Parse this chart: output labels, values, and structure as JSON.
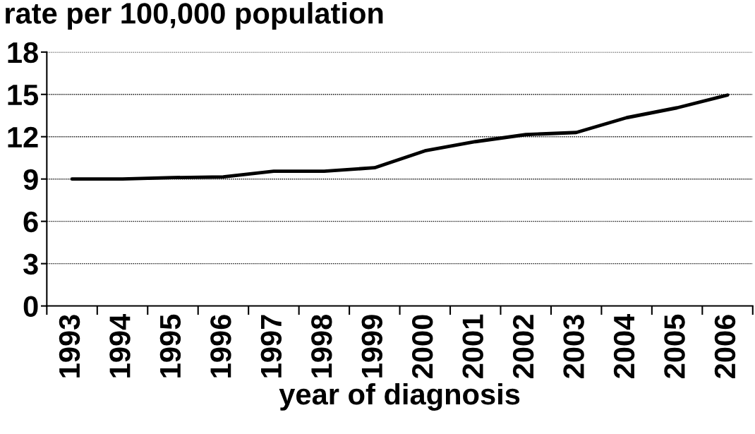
{
  "chart_data": {
    "type": "line",
    "ylabel": "rate per 100,000 population",
    "xlabel": "year of diagnosis",
    "categories": [
      "1993",
      "1994",
      "1995",
      "1996",
      "1997",
      "1998",
      "1999",
      "2000",
      "2001",
      "2002",
      "2003",
      "2004",
      "2005",
      "2006"
    ],
    "series": [
      {
        "color": "#000000",
        "values": [
          9.0,
          9.0,
          9.1,
          9.15,
          9.55,
          9.55,
          9.8,
          11.0,
          11.65,
          12.15,
          12.3,
          13.35,
          14.05,
          14.95
        ]
      }
    ],
    "ylim": [
      0,
      18
    ],
    "yticks": [
      0,
      3,
      6,
      9,
      12,
      15,
      18
    ],
    "grid": "y",
    "marker": "none",
    "line_style": "solid"
  }
}
